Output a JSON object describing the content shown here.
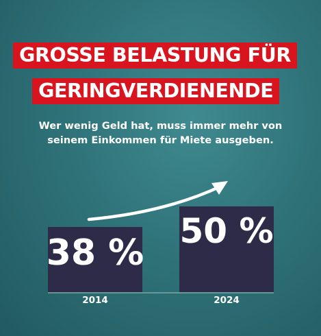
{
  "headline": {
    "line1": "GROSSE BELASTUNG FÜR",
    "line2": "GERINGVERDIENENDE"
  },
  "subtitle": {
    "line1": "Wer wenig Geld hat, muss immer mehr von",
    "line2": "seinem Einkommen für Miete ausgeben."
  },
  "colors": {
    "background": "#2f7379",
    "headline_bg": "#d8141f",
    "bar": "#2d2b47",
    "text": "#ffffff"
  },
  "chart_data": {
    "type": "bar",
    "categories": [
      "2014",
      "2024"
    ],
    "values": [
      38,
      50
    ],
    "data_labels": [
      "38 %",
      "50 %"
    ],
    "unit": "%",
    "trend_arrow": "up",
    "ylim": [
      0,
      50
    ],
    "grid": false
  }
}
